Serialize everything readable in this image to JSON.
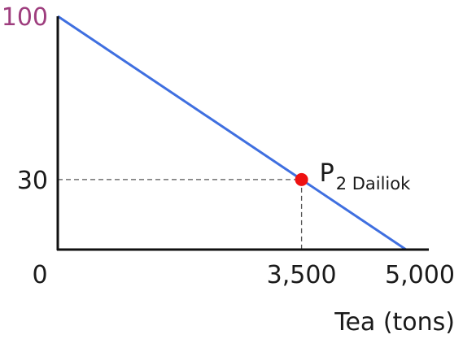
{
  "chart_data": {
    "type": "line",
    "title": "",
    "xlabel": "Tea (tons)",
    "ylabel": "",
    "xlim": [
      0,
      5000
    ],
    "ylim": [
      0,
      100
    ],
    "grid": false,
    "series": [
      {
        "x": [
          0,
          5000
        ],
        "y": [
          100,
          0
        ],
        "color": "#3f6fe0"
      }
    ],
    "points": [
      {
        "x": 3500,
        "y": 30,
        "label_main": "P",
        "label_sub": "2 Dailiok",
        "color": "#ee1111"
      }
    ],
    "x_ticks": [
      {
        "value": 0,
        "label": "0"
      },
      {
        "value": 3500,
        "label": "3,500"
      },
      {
        "value": 5000,
        "label": "5,000"
      }
    ],
    "y_ticks": [
      {
        "value": 100,
        "label": "100",
        "color": "#9e3e7e"
      },
      {
        "value": 30,
        "label": "30",
        "color": "#1a1a1a"
      }
    ]
  }
}
